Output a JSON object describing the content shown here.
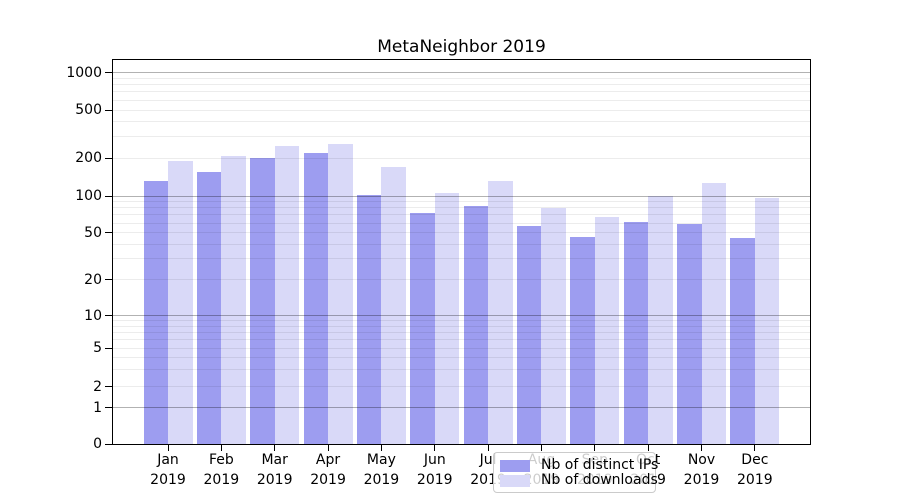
{
  "title": "MetaNeighbor 2019",
  "chart_data": {
    "type": "bar",
    "title": "MetaNeighbor 2019",
    "months": [
      "Jan",
      "Feb",
      "Mar",
      "Apr",
      "May",
      "Jun",
      "Jul",
      "Aug",
      "Sep",
      "Oct",
      "Nov",
      "Dec"
    ],
    "year_label": "2019",
    "series": [
      {
        "name": "Nb of distinct IPs",
        "color": "#9d9df0",
        "values": [
          132,
          156,
          201,
          220,
          101,
          73,
          83,
          57,
          46,
          61,
          59,
          45
        ]
      },
      {
        "name": "Nb of downloads",
        "color": "#d9d9f8",
        "values": [
          190,
          209,
          253,
          260,
          171,
          105,
          132,
          79,
          67,
          100,
          126,
          97
        ]
      }
    ],
    "y_axis": {
      "scale": "symlog",
      "ticks": [
        0,
        1,
        2,
        5,
        10,
        20,
        50,
        100,
        200,
        500,
        1000
      ],
      "ylim": [
        0,
        1100
      ]
    },
    "x_axis": {
      "tick_labels_line1": [
        "Jan",
        "Feb",
        "Mar",
        "Apr",
        "May",
        "Jun",
        "Jul",
        "Aug",
        "Sep",
        "Oct",
        "Nov",
        "Dec"
      ],
      "tick_labels_line2": "2019"
    },
    "grid": true,
    "legend": {
      "position": "bottom-center",
      "entries": [
        "Nb of distinct IPs",
        "Nb of downloads"
      ]
    }
  }
}
